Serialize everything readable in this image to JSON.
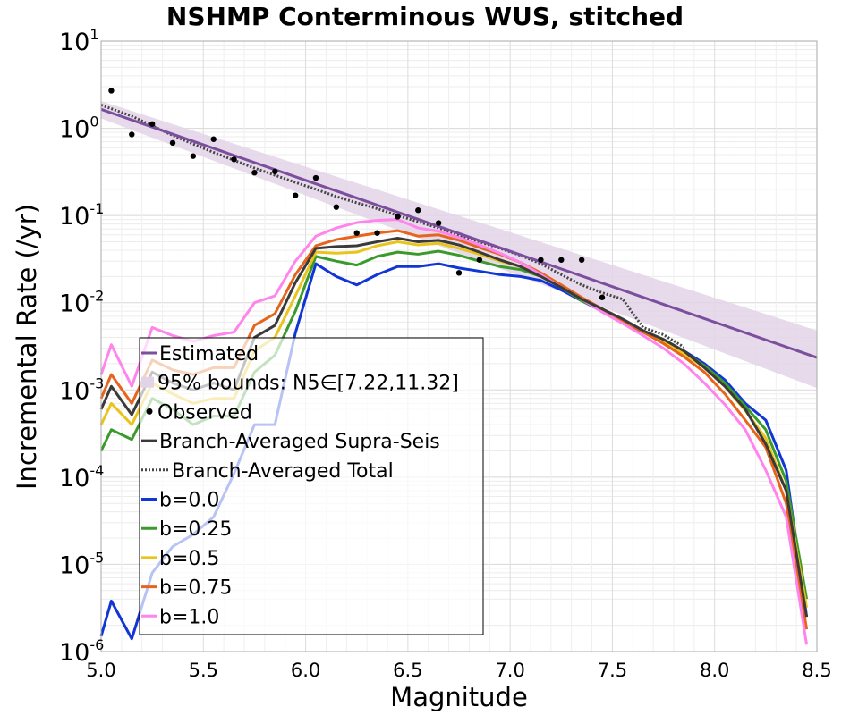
{
  "chart_data": {
    "type": "line",
    "title": "NSHMP Conterminous WUS, stitched",
    "xlabel": "Magnitude",
    "ylabel": "Incremental Rate (/yr)",
    "xlim": [
      5.0,
      8.5
    ],
    "ylim": [
      1e-06,
      10
    ],
    "yscale": "log",
    "grid": true,
    "legend_position": "lower-left",
    "x_ticks": [
      "5.0",
      "5.5",
      "6.0",
      "6.5",
      "7.0",
      "7.5",
      "8.0",
      "8.5"
    ],
    "y_ticks": [
      {
        "base": "10",
        "exp": "-6"
      },
      {
        "base": "10",
        "exp": "-5"
      },
      {
        "base": "10",
        "exp": "-4"
      },
      {
        "base": "10",
        "exp": "-3"
      },
      {
        "base": "10",
        "exp": "-2"
      },
      {
        "base": "10",
        "exp": "-1"
      },
      {
        "base": "10",
        "exp": "0"
      },
      {
        "base": "10",
        "exp": "1"
      }
    ],
    "estimated": {
      "name": "Estimated",
      "color": "#7b4f9d",
      "x": [
        5.0,
        8.5
      ],
      "y": [
        1.65,
        0.00235
      ]
    },
    "bounds": {
      "name": "95% bounds: N5∈[7.22,11.32]",
      "color": "#e2d4e8",
      "x": [
        5.0,
        8.5
      ],
      "lower": [
        1.3,
        0.00105
      ],
      "upper": [
        2.05,
        0.0048
      ]
    },
    "observed": {
      "name": "Observed",
      "color": "#000000",
      "x": [
        5.05,
        5.15,
        5.25,
        5.35,
        5.45,
        5.55,
        5.65,
        5.75,
        5.85,
        5.95,
        6.05,
        6.15,
        6.25,
        6.35,
        6.45,
        6.55,
        6.65,
        6.75,
        6.85,
        7.15,
        7.25,
        7.35,
        7.45
      ],
      "y": [
        2.7,
        0.85,
        1.12,
        0.68,
        0.48,
        0.75,
        0.44,
        0.31,
        0.32,
        0.17,
        0.27,
        0.125,
        0.063,
        0.063,
        0.097,
        0.115,
        0.082,
        0.022,
        0.031,
        0.031,
        0.031,
        0.031,
        0.0115
      ]
    },
    "branch_supra": {
      "name": "Branch-Averaged Supra-Seis",
      "color": "#3a3a3a",
      "x": [
        5.0,
        5.05,
        5.15,
        5.25,
        5.35,
        5.45,
        5.55,
        5.65,
        5.75,
        5.85,
        5.95,
        6.05,
        6.15,
        6.25,
        6.35,
        6.45,
        6.55,
        6.65,
        6.75,
        6.85,
        6.95,
        7.05,
        7.15,
        7.25,
        7.35,
        7.45,
        7.55,
        7.65,
        7.75,
        7.85,
        7.95,
        8.05,
        8.15,
        8.25,
        8.35,
        8.45
      ],
      "y": [
        0.0006,
        0.0011,
        0.00052,
        0.0016,
        0.0012,
        0.001,
        0.0012,
        0.001,
        0.004,
        0.0055,
        0.017,
        0.042,
        0.044,
        0.045,
        0.05,
        0.055,
        0.05,
        0.052,
        0.046,
        0.038,
        0.031,
        0.026,
        0.02,
        0.015,
        0.011,
        0.0085,
        0.0065,
        0.0048,
        0.0038,
        0.0028,
        0.0018,
        0.0011,
        0.0006,
        0.00024,
        7e-05,
        2.5e-06
      ]
    },
    "branch_total": {
      "name": "Branch-Averaged Total",
      "color": "#444444",
      "x": [
        5.0,
        5.15,
        5.25,
        5.35,
        5.45,
        5.55,
        5.65,
        5.75,
        5.85,
        5.95,
        6.05,
        6.15,
        6.25,
        6.35,
        6.45,
        6.55,
        6.65,
        6.75,
        6.85,
        6.95,
        7.05,
        7.15,
        7.25,
        7.35,
        7.45,
        7.55,
        7.65,
        7.75,
        7.85
      ],
      "y": [
        1.85,
        1.38,
        1.07,
        0.83,
        0.66,
        0.53,
        0.43,
        0.35,
        0.29,
        0.24,
        0.2,
        0.165,
        0.14,
        0.12,
        0.1,
        0.085,
        0.072,
        0.06,
        0.05,
        0.042,
        0.035,
        0.028,
        0.021,
        0.016,
        0.013,
        0.011,
        0.0052,
        0.0043,
        0.0031
      ]
    },
    "series": [
      {
        "name": "b=0.0",
        "color": "#1236d6",
        "x": [
          5.0,
          5.05,
          5.15,
          5.25,
          5.35,
          5.45,
          5.55,
          5.65,
          5.75,
          5.85,
          5.95,
          6.05,
          6.15,
          6.25,
          6.35,
          6.45,
          6.55,
          6.65,
          6.75,
          6.85,
          6.95,
          7.05,
          7.15,
          7.25,
          7.35,
          7.45,
          7.55,
          7.65,
          7.75,
          7.85,
          7.95,
          8.05,
          8.15,
          8.25,
          8.35,
          8.45
        ],
        "y": [
          1.5e-06,
          3.8e-06,
          1.4e-06,
          8e-06,
          1.6e-05,
          2.2e-05,
          3.5e-05,
          0.00011,
          0.0004,
          0.0004,
          0.0045,
          0.028,
          0.02,
          0.016,
          0.021,
          0.026,
          0.026,
          0.028,
          0.025,
          0.023,
          0.021,
          0.02,
          0.018,
          0.014,
          0.0105,
          0.008,
          0.006,
          0.0046,
          0.0036,
          0.0028,
          0.002,
          0.0013,
          0.0007,
          0.00045,
          0.00012,
          2.5e-06
        ]
      },
      {
        "name": "b=0.25",
        "color": "#3a9a2c",
        "x": [
          5.0,
          5.05,
          5.15,
          5.25,
          5.35,
          5.45,
          5.55,
          5.65,
          5.75,
          5.85,
          5.95,
          6.05,
          6.15,
          6.25,
          6.35,
          6.45,
          6.55,
          6.65,
          6.75,
          6.85,
          6.95,
          7.05,
          7.15,
          7.25,
          7.35,
          7.45,
          7.55,
          7.65,
          7.75,
          7.85,
          7.95,
          8.05,
          8.15,
          8.25,
          8.35,
          8.45
        ],
        "y": [
          0.0002,
          0.00035,
          0.00027,
          0.0008,
          0.0006,
          0.0004,
          0.0005,
          0.0005,
          0.0016,
          0.0025,
          0.008,
          0.034,
          0.03,
          0.027,
          0.034,
          0.038,
          0.036,
          0.039,
          0.035,
          0.03,
          0.026,
          0.024,
          0.02,
          0.015,
          0.0105,
          0.0082,
          0.0062,
          0.0047,
          0.0036,
          0.0027,
          0.0019,
          0.0012,
          0.00065,
          0.00035,
          9e-05,
          4e-06
        ]
      },
      {
        "name": "b=0.5",
        "color": "#e8c41c",
        "x": [
          5.0,
          5.05,
          5.15,
          5.25,
          5.35,
          5.45,
          5.55,
          5.65,
          5.75,
          5.85,
          5.95,
          6.05,
          6.15,
          6.25,
          6.35,
          6.45,
          6.55,
          6.65,
          6.75,
          6.85,
          6.95,
          7.05,
          7.15,
          7.25,
          7.35,
          7.45,
          7.55,
          7.65,
          7.75,
          7.85,
          7.95,
          8.05,
          8.15,
          8.25,
          8.35,
          8.45
        ],
        "y": [
          0.0004,
          0.0007,
          0.0004,
          0.0012,
          0.0009,
          0.0007,
          0.0008,
          0.0008,
          0.0028,
          0.004,
          0.012,
          0.038,
          0.037,
          0.038,
          0.045,
          0.05,
          0.046,
          0.048,
          0.042,
          0.036,
          0.03,
          0.026,
          0.021,
          0.016,
          0.011,
          0.0085,
          0.0063,
          0.0047,
          0.0036,
          0.0026,
          0.0018,
          0.0011,
          0.00058,
          0.00028,
          7e-05,
          3.2e-06
        ]
      },
      {
        "name": "b=0.75",
        "color": "#e6641c",
        "x": [
          5.0,
          5.05,
          5.15,
          5.25,
          5.35,
          5.45,
          5.55,
          5.65,
          5.75,
          5.85,
          5.95,
          6.05,
          6.15,
          6.25,
          6.35,
          6.45,
          6.55,
          6.65,
          6.75,
          6.85,
          6.95,
          7.05,
          7.15,
          7.25,
          7.35,
          7.45,
          7.55,
          7.65,
          7.75,
          7.85,
          7.95,
          8.05,
          8.15,
          8.25,
          8.35,
          8.45
        ],
        "y": [
          0.0008,
          0.0015,
          0.0007,
          0.0022,
          0.0017,
          0.0015,
          0.0018,
          0.0018,
          0.0055,
          0.0075,
          0.021,
          0.045,
          0.053,
          0.058,
          0.063,
          0.067,
          0.058,
          0.06,
          0.052,
          0.043,
          0.036,
          0.029,
          0.022,
          0.016,
          0.0115,
          0.0085,
          0.0062,
          0.0046,
          0.0034,
          0.0024,
          0.0016,
          0.0009,
          0.00045,
          0.00022,
          5e-05,
          1.8e-06
        ]
      },
      {
        "name": "b=1.0",
        "color": "#ff84ec",
        "x": [
          5.0,
          5.05,
          5.15,
          5.25,
          5.35,
          5.45,
          5.55,
          5.65,
          5.75,
          5.85,
          5.95,
          6.05,
          6.15,
          6.25,
          6.35,
          6.45,
          6.55,
          6.65,
          6.75,
          6.85,
          6.95,
          7.05,
          7.15,
          7.25,
          7.35,
          7.45,
          7.55,
          7.65,
          7.75,
          7.85,
          7.95,
          8.05,
          8.15,
          8.25,
          8.35,
          8.45
        ],
        "y": [
          0.0015,
          0.0033,
          0.0011,
          0.0052,
          0.0042,
          0.0036,
          0.0042,
          0.0046,
          0.01,
          0.012,
          0.03,
          0.058,
          0.072,
          0.083,
          0.088,
          0.09,
          0.072,
          0.066,
          0.056,
          0.046,
          0.037,
          0.029,
          0.021,
          0.015,
          0.011,
          0.0078,
          0.0058,
          0.0042,
          0.003,
          0.002,
          0.0012,
          0.00068,
          0.00035,
          0.00012,
          3.5e-05,
          1.2e-06
        ]
      }
    ]
  }
}
